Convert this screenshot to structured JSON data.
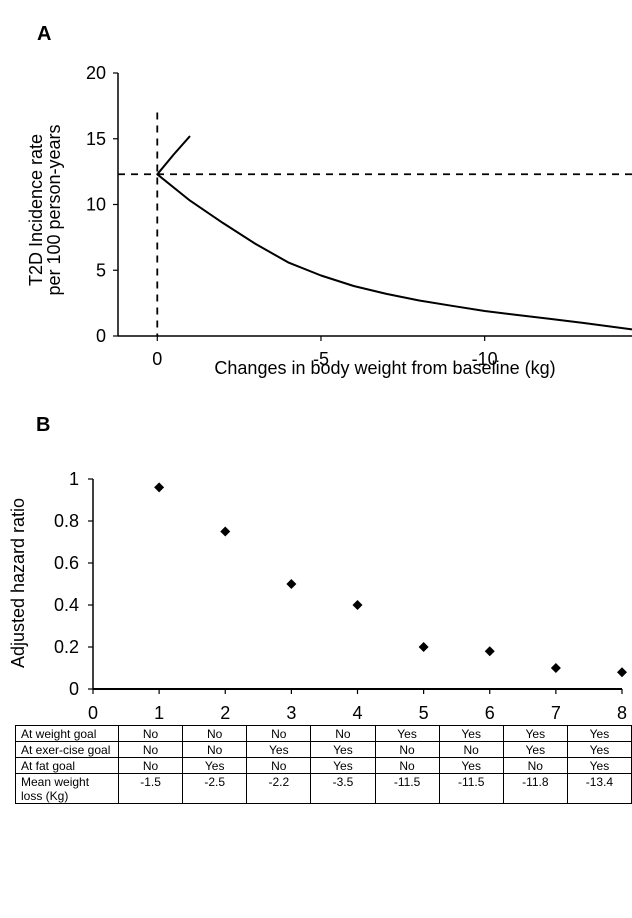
{
  "chart_data": [
    {
      "type": "line",
      "panel": "A",
      "xlabel": "Changes in body weight from baseline (kg)",
      "ylabel_lines": [
        "T2D Incidence rate",
        "per 100 person-years"
      ],
      "xlim": [
        1.2,
        -14.5
      ],
      "ylim": [
        0,
        20
      ],
      "xticks": [
        0,
        -5,
        -10
      ],
      "xtick_labels": [
        "0",
        "-5",
        "-10"
      ],
      "yticks": [
        0,
        5,
        10,
        15,
        20
      ],
      "ytick_labels": [
        "0",
        "5",
        "10",
        "15",
        "20"
      ],
      "series": [
        {
          "x": [
            -1.0,
            -0.5,
            0,
            -1,
            -2,
            -3,
            -4,
            -5,
            -6,
            -7,
            -8,
            -9,
            -10,
            -11,
            -12,
            -13,
            -14.5
          ],
          "y": [
            15.2,
            13.8,
            12.3,
            10.3,
            8.6,
            7.0,
            5.6,
            4.6,
            3.8,
            3.2,
            2.7,
            2.3,
            1.9,
            1.6,
            1.3,
            1.0,
            0.5
          ]
        }
      ],
      "reference_lines": {
        "vertical_x": 0,
        "horizontal_y": 12.3,
        "style": "dashed"
      },
      "grid": false,
      "legend": "none"
    },
    {
      "type": "scatter",
      "panel": "B",
      "ylabel": "Adjusted hazard ratio",
      "xlabel": "",
      "xlim": [
        0,
        8
      ],
      "ylim": [
        0,
        1
      ],
      "xticks": [
        0,
        1,
        2,
        3,
        4,
        5,
        6,
        7,
        8
      ],
      "xtick_labels": [
        "0",
        "1",
        "2",
        "3",
        "4",
        "5",
        "6",
        "7",
        "8"
      ],
      "yticks": [
        0,
        0.2,
        0.4,
        0.6,
        0.8,
        1
      ],
      "ytick_labels": [
        "0",
        "0.2",
        "0.4",
        "0.6",
        "0.8",
        "1"
      ],
      "series": [
        {
          "marker": "diamond",
          "x": [
            1,
            2,
            3,
            4,
            5,
            6,
            7,
            8
          ],
          "y": [
            0.96,
            0.75,
            0.5,
            0.4,
            0.2,
            0.18,
            0.1,
            0.08
          ]
        }
      ],
      "grid": false,
      "legend": "none"
    }
  ],
  "panel_labels": {
    "a": "A",
    "b": "B"
  },
  "table": {
    "rows": [
      {
        "header": "At weight goal",
        "values": [
          "No",
          "No",
          "No",
          "No",
          "Yes",
          "Yes",
          "Yes",
          "Yes"
        ]
      },
      {
        "header": "At exer-cise goal",
        "values": [
          "No",
          "No",
          "Yes",
          "Yes",
          "No",
          "No",
          "Yes",
          "Yes"
        ]
      },
      {
        "header": "At fat goal",
        "values": [
          "No",
          "Yes",
          "No",
          "Yes",
          "No",
          "Yes",
          "No",
          "Yes"
        ]
      },
      {
        "header": "Mean weight loss (Kg)",
        "values": [
          "-1.5",
          "-2.5",
          "-2.2",
          "-3.5",
          "-11.5",
          "-11.5",
          "-11.8",
          "-13.4"
        ]
      }
    ]
  }
}
